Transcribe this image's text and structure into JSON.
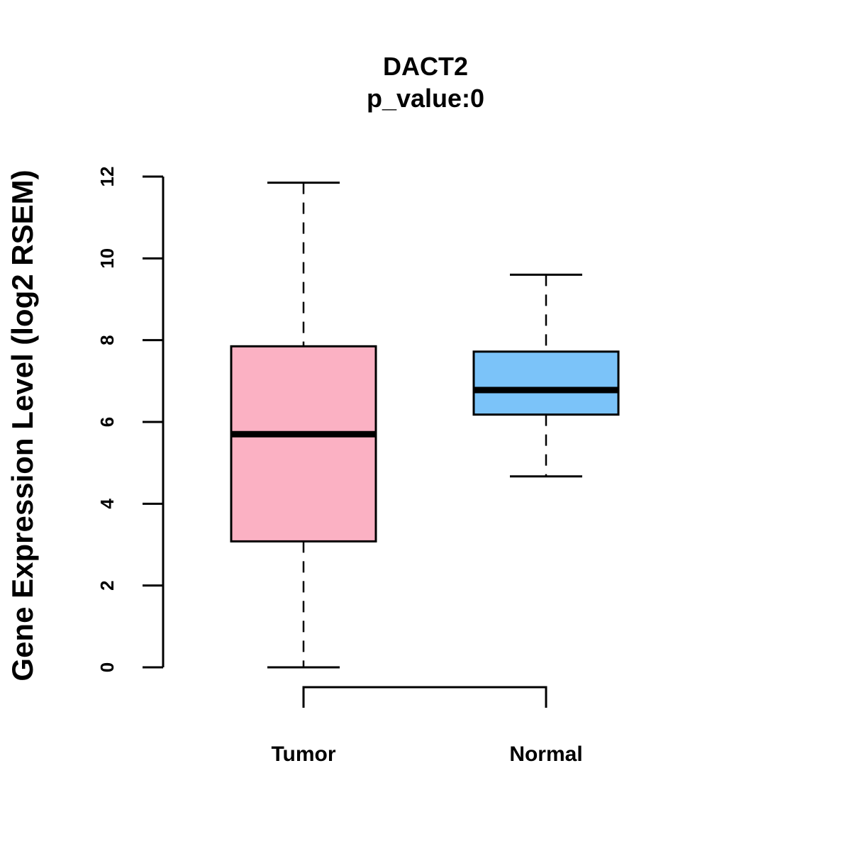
{
  "chart_data": {
    "type": "boxplot",
    "title": "DACT2",
    "subtitle": "p_value:0",
    "xlabel": "",
    "ylabel": "Gene Expression Level (log2 RSEM)",
    "ylim": [
      0,
      12
    ],
    "yticks": [
      0,
      2,
      4,
      6,
      8,
      10,
      12
    ],
    "grid": false,
    "categories": [
      "Tumor",
      "Normal"
    ],
    "boxes": [
      {
        "name": "Tumor",
        "color": "#FBB1C3",
        "whisker_low": 0.0,
        "q1": 3.08,
        "median": 5.7,
        "q3": 7.85,
        "whisker_high": 11.85
      },
      {
        "name": "Normal",
        "color": "#7BC3F9",
        "whisker_low": 4.67,
        "q1": 6.18,
        "median": 6.78,
        "q3": 7.72,
        "whisker_high": 9.6
      }
    ],
    "comparison_bracket": {
      "from": "Tumor",
      "to": "Normal"
    }
  }
}
